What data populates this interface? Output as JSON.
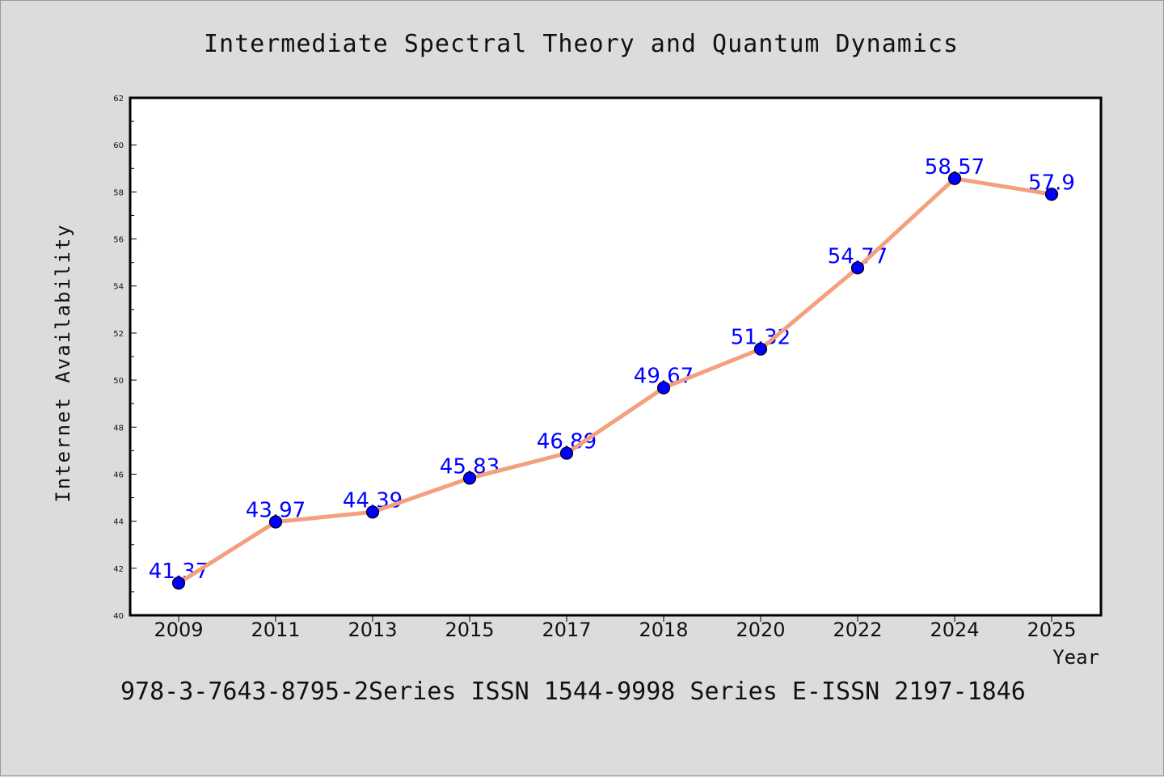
{
  "chart_data": {
    "type": "line",
    "title": "Intermediate Spectral Theory and Quantum Dynamics",
    "xlabel": "Year",
    "ylabel": "Internet Availability",
    "categories": [
      "2009",
      "2011",
      "2013",
      "2015",
      "2017",
      "2018",
      "2020",
      "2022",
      "2024",
      "2025"
    ],
    "series": [
      {
        "values": [
          41.37,
          43.97,
          44.39,
          45.83,
          46.89,
          49.67,
          51.32,
          54.77,
          58.57,
          57.9
        ],
        "data_labels": [
          "41.37",
          "43.97",
          "44.39",
          "45.83",
          "46.89",
          "49.67",
          "51.32",
          "54.77",
          "58.57",
          "57.9"
        ]
      }
    ],
    "ylim": [
      40,
      62
    ],
    "yticks": [
      "40",
      "42",
      "44",
      "46",
      "48",
      "50",
      "52",
      "54",
      "56",
      "58",
      "60",
      "62"
    ],
    "grid": false,
    "legend": "none",
    "colors": {
      "line": "#f4a07f",
      "marker": "#0000ff",
      "data_label": "#0000ff",
      "axes": "#000000",
      "background": "#dcdcdc",
      "plot_background": "#ffffff"
    }
  },
  "footer_text": "978-3-7643-8795-2Series ISSN 1544-9998 Series E-ISSN 2197-1846"
}
